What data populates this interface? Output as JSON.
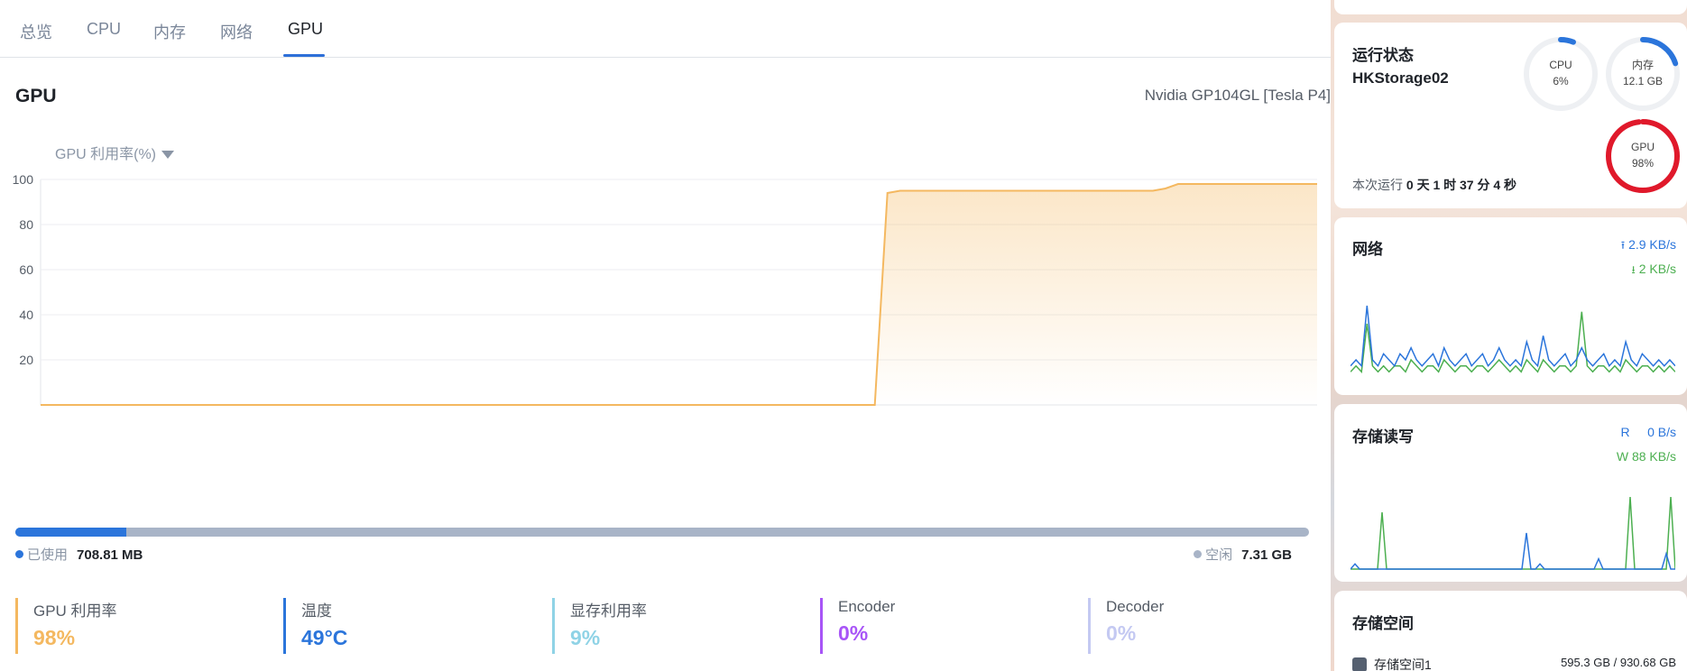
{
  "tabs": [
    {
      "label": "总览"
    },
    {
      "label": "CPU"
    },
    {
      "label": "内存"
    },
    {
      "label": "网络"
    },
    {
      "label": "GPU"
    }
  ],
  "active_tab": "GPU",
  "gpu": {
    "title": "GPU",
    "model": "Nvidia GP104GL [Tesla P4]",
    "metric_select": "GPU 利用率(%)"
  },
  "chart_data": {
    "type": "area",
    "x_count": 100,
    "series": [
      {
        "values": [
          0,
          0,
          0,
          0,
          0,
          0,
          0,
          0,
          0,
          0,
          0,
          0,
          0,
          0,
          0,
          0,
          0,
          0,
          0,
          0,
          0,
          0,
          0,
          0,
          0,
          0,
          0,
          0,
          0,
          0,
          0,
          0,
          0,
          0,
          0,
          0,
          0,
          0,
          0,
          0,
          0,
          0,
          0,
          0,
          0,
          0,
          0,
          0,
          0,
          0,
          0,
          0,
          0,
          0,
          0,
          0,
          0,
          0,
          0,
          0,
          0,
          0,
          0,
          0,
          0,
          0,
          0,
          94,
          95,
          95,
          95,
          95,
          95,
          95,
          95,
          95,
          95,
          95,
          95,
          95,
          95,
          95,
          95,
          95,
          95,
          95,
          95,
          95,
          95,
          96,
          98,
          98,
          98,
          98,
          98,
          98,
          98,
          98,
          98,
          98,
          98,
          98
        ],
        "color": "#f4b860"
      }
    ],
    "yticks": [
      20,
      40,
      60,
      80,
      100
    ],
    "ylim": [
      0,
      100
    ],
    "grid": true
  },
  "memory": {
    "used_label": "已使用",
    "used_value": "708.81 MB",
    "free_label": "空闲",
    "free_value": "7.31 GB",
    "used_fraction": 0.086,
    "used_color": "#2b75db",
    "free_color": "#a8b4c7"
  },
  "stats": [
    {
      "label": "GPU 利用率",
      "value": "98%",
      "color": "#f4b860"
    },
    {
      "label": "温度",
      "value": "49°C",
      "color": "#2b75db"
    },
    {
      "label": "显存利用率",
      "value": "9%",
      "color": "#8fd3e6"
    },
    {
      "label": "Encoder",
      "value": "0%",
      "color": "#a855f7"
    },
    {
      "label": "Decoder",
      "value": "0%",
      "color": "#c4c9f2"
    }
  ],
  "sidebar": {
    "status": {
      "title": "运行状态",
      "host": "HKStorage02",
      "uptime_label": "本次运行",
      "uptime_value": "0 天 1 时 37 分 4 秒",
      "cpu": {
        "label": "CPU",
        "value": "6%",
        "fraction": 0.06,
        "color": "#2b75db"
      },
      "mem": {
        "label": "内存",
        "value": "12.1 GB",
        "fraction": 0.2,
        "color": "#2b75db"
      },
      "gpu": {
        "label": "GPU",
        "value": "98%",
        "fraction": 0.98,
        "color": "#e0192b"
      }
    },
    "network": {
      "title": "网络",
      "up": "2.9 KB/s",
      "down": "2 KB/s",
      "up_color": "#2b75db",
      "down_color": "#4caf50",
      "up_series": [
        2,
        3,
        2,
        12,
        3,
        2,
        4,
        3,
        2,
        4,
        3,
        5,
        3,
        2,
        3,
        4,
        2,
        5,
        3,
        2,
        3,
        4,
        2,
        3,
        4,
        2,
        3,
        5,
        3,
        2,
        3,
        2,
        6,
        3,
        2,
        7,
        3,
        2,
        3,
        4,
        2,
        3,
        5,
        3,
        2,
        3,
        4,
        2,
        3,
        2,
        6,
        3,
        2,
        4,
        3,
        2,
        3,
        2,
        3,
        2
      ],
      "down_series": [
        1,
        2,
        1,
        9,
        2,
        1,
        2,
        1,
        2,
        2,
        1,
        3,
        2,
        1,
        2,
        2,
        1,
        3,
        2,
        1,
        2,
        2,
        1,
        2,
        2,
        1,
        2,
        3,
        2,
        1,
        2,
        1,
        3,
        2,
        1,
        3,
        2,
        1,
        2,
        2,
        1,
        2,
        11,
        2,
        1,
        2,
        2,
        1,
        2,
        1,
        3,
        2,
        1,
        2,
        2,
        1,
        2,
        1,
        2,
        1
      ]
    },
    "storage_io": {
      "title": "存储读写",
      "r_label": "R",
      "r_value": "0 B/s",
      "w_label": "W",
      "w_value": "88 KB/s",
      "r_series": [
        0,
        1,
        0,
        0,
        0,
        0,
        0,
        0,
        0,
        0,
        0,
        0,
        0,
        0,
        0,
        0,
        0,
        0,
        0,
        0,
        0,
        0,
        0,
        0,
        0,
        0,
        0,
        0,
        0,
        0,
        0,
        0,
        0,
        0,
        0,
        0,
        0,
        0,
        0,
        7,
        0,
        0,
        1,
        0,
        0,
        0,
        0,
        0,
        0,
        0,
        0,
        0,
        0,
        0,
        0,
        2,
        0,
        0,
        0,
        0,
        0,
        0,
        0,
        0,
        0,
        0,
        0,
        0,
        0,
        0,
        3,
        0,
        0
      ],
      "w_series": [
        0,
        0,
        0,
        0,
        0,
        0,
        0,
        11,
        0,
        0,
        0,
        0,
        0,
        0,
        0,
        0,
        0,
        0,
        0,
        0,
        0,
        0,
        0,
        0,
        0,
        0,
        0,
        0,
        0,
        0,
        0,
        0,
        0,
        0,
        0,
        0,
        0,
        0,
        0,
        0,
        0,
        0,
        0,
        0,
        0,
        0,
        0,
        0,
        0,
        0,
        0,
        0,
        0,
        0,
        0,
        0,
        0,
        0,
        0,
        0,
        0,
        0,
        14,
        0,
        0,
        0,
        0,
        0,
        0,
        0,
        0,
        14,
        0
      ]
    },
    "storage_space": {
      "title": "存储空间",
      "name": "存储空间1",
      "size": "595.3 GB / 930.68 GB"
    }
  }
}
